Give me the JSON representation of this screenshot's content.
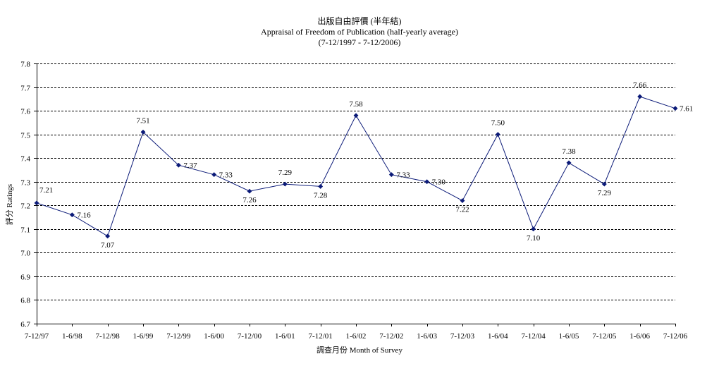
{
  "chart_data": {
    "type": "line",
    "title": "出版自由評價 (半年結)",
    "subtitle": "Appraisal of Freedom of Publication (half-yearly average)",
    "subtitle2": "(7-12/1997 - 7-12/2006)",
    "xlabel": "調查月份 Month of Survey",
    "ylabel": "評分 Ratings",
    "ylim": [
      6.7,
      7.8
    ],
    "ystep": 0.1,
    "grid": true,
    "legend": "none",
    "line_color": "#0b1a78",
    "marker_color": "#0b1a78",
    "grid_color": "#000000",
    "categories": [
      "7-12/97",
      "1-6/98",
      "7-12/98",
      "1-6/99",
      "7-12/99",
      "1-6/00",
      "7-12/00",
      "1-6/01",
      "7-12/01",
      "1-6/02",
      "7-12/02",
      "1-6/03",
      "7-12/03",
      "1-6/04",
      "7-12/04",
      "1-6/05",
      "7-12/05",
      "1-6/06",
      "7-12/06"
    ],
    "values": [
      7.21,
      7.16,
      7.07,
      7.51,
      7.37,
      7.33,
      7.26,
      7.29,
      7.28,
      7.58,
      7.33,
      7.3,
      7.22,
      7.5,
      7.1,
      7.38,
      7.29,
      7.66,
      7.61
    ],
    "data_labels": [
      "7.21",
      "7.16",
      "7.07",
      "7.51",
      "7.37",
      "7.33",
      "7.26",
      "7.29",
      "7.28",
      "7.58",
      "7.33",
      "7.30",
      "7.22",
      "7.50",
      "7.10",
      "7.38",
      "7.29",
      "7.66",
      "7.61"
    ],
    "y_tick_labels": [
      "6.7",
      "6.8",
      "6.9",
      "7.0",
      "7.1",
      "7.2",
      "7.3",
      "7.4",
      "7.5",
      "7.6",
      "7.7",
      "7.8"
    ]
  }
}
